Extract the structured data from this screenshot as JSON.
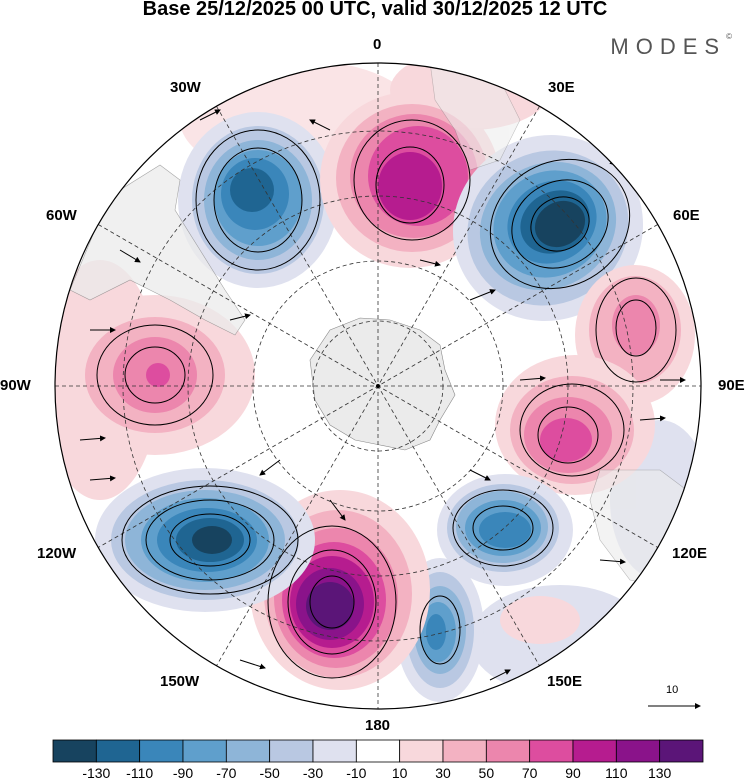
{
  "title": "Base 25/12/2025 00 UTC, valid 30/12/2025 12 UTC",
  "brand": "MODES",
  "brand_mark": "©",
  "longitude_labels": {
    "top": "0",
    "ne": "30E",
    "e1": "60E",
    "e": "90E",
    "e2": "120E",
    "se": "150E",
    "bottom": "180",
    "sw": "150W",
    "w2": "120W",
    "w": "90W",
    "w1": "60W",
    "nw": "30W"
  },
  "vector_reference": "10",
  "colorbar": {
    "ticks": [
      "-130",
      "-110",
      "-90",
      "-70",
      "-50",
      "-30",
      "-10",
      "10",
      "30",
      "50",
      "70",
      "90",
      "110",
      "130"
    ],
    "colors": [
      "#17435f",
      "#1f6592",
      "#3a86ba",
      "#5f9fcc",
      "#8eb5d8",
      "#b9c8e2",
      "#dfe1ef",
      "#ffffff",
      "#f8d8dc",
      "#f3b2c2",
      "#ec86ad",
      "#dd4d9f",
      "#b61c8f",
      "#8a138a",
      "#5b1578"
    ]
  },
  "anomaly_centres": [
    {
      "sign": "negative",
      "level": -110,
      "region": "South Atlantic (30W)"
    },
    {
      "sign": "positive",
      "level": 110,
      "region": "Greenwich meridian"
    },
    {
      "sign": "negative",
      "level": -130,
      "region": "Southern Indian Ocean (50E)"
    },
    {
      "sign": "positive",
      "level": 70,
      "region": "Southern Indian Ocean (75E)"
    },
    {
      "sign": "positive",
      "level": 90,
      "region": "Southern Indian Ocean (105E)"
    },
    {
      "sign": "negative",
      "level": -110,
      "region": "South of Australia (135E)"
    },
    {
      "sign": "negative",
      "level": -90,
      "region": "Tasman Sea (155E)"
    },
    {
      "sign": "positive",
      "level": 30,
      "region": "New Zealand (170E)"
    },
    {
      "sign": "positive",
      "level": 130,
      "region": "Pacific (170W)"
    },
    {
      "sign": "negative",
      "level": -130,
      "region": "South Pacific (125W)"
    },
    {
      "sign": "positive",
      "level": 70,
      "region": "South Pacific (90W)"
    },
    {
      "sign": "positive",
      "level": 30,
      "region": "South America (60W)"
    }
  ]
}
